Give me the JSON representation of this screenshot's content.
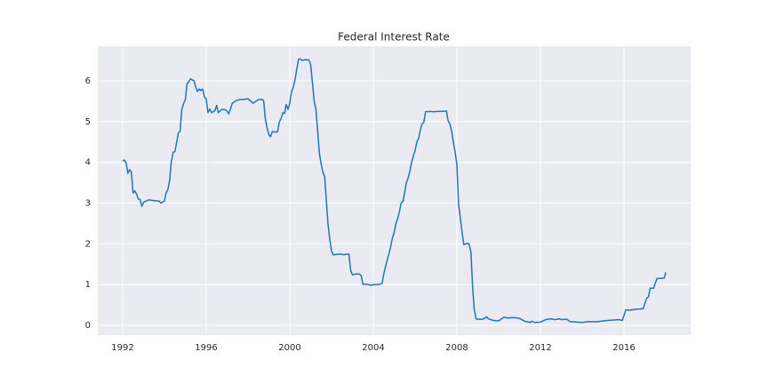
{
  "chart_data": {
    "type": "line",
    "title": "Federal Interest Rate",
    "color": "#1f77b4",
    "grid": true,
    "x": [
      1992.0,
      1992.08,
      1992.17,
      1992.25,
      1992.33,
      1992.42,
      1992.5,
      1992.58,
      1992.67,
      1992.75,
      1992.83,
      1992.92,
      1993.0,
      1993.25,
      1993.5,
      1993.75,
      1993.83,
      1994.0,
      1994.08,
      1994.17,
      1994.25,
      1994.33,
      1994.42,
      1994.5,
      1994.58,
      1994.67,
      1994.75,
      1994.83,
      1994.92,
      1995.0,
      1995.08,
      1995.17,
      1995.25,
      1995.42,
      1995.5,
      1995.58,
      1995.67,
      1995.75,
      1995.83,
      1995.92,
      1996.0,
      1996.08,
      1996.17,
      1996.25,
      1996.42,
      1996.5,
      1996.58,
      1996.75,
      1996.92,
      1997.0,
      1997.08,
      1997.25,
      1997.42,
      1997.58,
      1997.75,
      1998.0,
      1998.25,
      1998.5,
      1998.67,
      1998.75,
      1998.83,
      1998.92,
      1999.0,
      1999.08,
      1999.17,
      1999.33,
      1999.42,
      1999.5,
      1999.58,
      1999.67,
      1999.75,
      1999.83,
      1999.92,
      2000.0,
      2000.08,
      2000.17,
      2000.25,
      2000.33,
      2000.42,
      2000.5,
      2000.58,
      2000.75,
      2000.92,
      2001.0,
      2001.08,
      2001.17,
      2001.25,
      2001.33,
      2001.42,
      2001.5,
      2001.58,
      2001.67,
      2001.75,
      2001.83,
      2001.92,
      2002.0,
      2002.08,
      2002.25,
      2002.42,
      2002.58,
      2002.75,
      2002.83,
      2002.92,
      2003.0,
      2003.17,
      2003.33,
      2003.42,
      2003.5,
      2003.67,
      2003.92,
      2004.0,
      2004.25,
      2004.42,
      2004.5,
      2004.58,
      2004.67,
      2004.75,
      2004.83,
      2004.92,
      2005.0,
      2005.08,
      2005.17,
      2005.25,
      2005.33,
      2005.42,
      2005.5,
      2005.58,
      2005.67,
      2005.75,
      2005.83,
      2005.92,
      2006.0,
      2006.08,
      2006.17,
      2006.25,
      2006.33,
      2006.42,
      2006.5,
      2006.67,
      2006.92,
      2007.0,
      2007.25,
      2007.5,
      2007.58,
      2007.67,
      2007.75,
      2007.83,
      2007.92,
      2008.0,
      2008.08,
      2008.17,
      2008.25,
      2008.33,
      2008.42,
      2008.5,
      2008.58,
      2008.67,
      2008.75,
      2008.83,
      2008.92,
      2009.0,
      2009.25,
      2009.42,
      2009.5,
      2009.75,
      2010.0,
      2010.25,
      2010.42,
      2010.75,
      2011.0,
      2011.25,
      2011.5,
      2011.58,
      2011.75,
      2012.0,
      2012.25,
      2012.5,
      2012.67,
      2012.92,
      2013.0,
      2013.25,
      2013.42,
      2013.75,
      2014.0,
      2014.25,
      2014.5,
      2014.75,
      2015.0,
      2015.25,
      2015.5,
      2015.75,
      2015.92,
      2016.0,
      2016.08,
      2016.25,
      2016.5,
      2016.75,
      2016.92,
      2017.0,
      2017.08,
      2017.17,
      2017.25,
      2017.42,
      2017.5,
      2017.58,
      2017.75,
      2017.92,
      2018.0
    ],
    "values": [
      4.03,
      4.06,
      3.98,
      3.73,
      3.82,
      3.76,
      3.25,
      3.3,
      3.22,
      3.1,
      3.09,
      2.92,
      3.02,
      3.08,
      3.06,
      3.05,
      3.0,
      3.05,
      3.25,
      3.34,
      3.56,
      4.01,
      4.25,
      4.26,
      4.47,
      4.73,
      4.76,
      5.29,
      5.45,
      5.53,
      5.92,
      5.98,
      6.05,
      6.0,
      5.85,
      5.74,
      5.8,
      5.76,
      5.8,
      5.6,
      5.56,
      5.22,
      5.31,
      5.22,
      5.27,
      5.4,
      5.22,
      5.3,
      5.29,
      5.25,
      5.19,
      5.45,
      5.51,
      5.54,
      5.54,
      5.56,
      5.45,
      5.54,
      5.55,
      5.51,
      5.07,
      4.83,
      4.68,
      4.63,
      4.76,
      4.74,
      4.76,
      4.99,
      5.07,
      5.22,
      5.2,
      5.42,
      5.3,
      5.45,
      5.73,
      5.85,
      6.02,
      6.27,
      6.53,
      6.54,
      6.5,
      6.52,
      6.51,
      6.4,
      5.98,
      5.49,
      5.31,
      4.8,
      4.21,
      3.97,
      3.77,
      3.65,
      3.07,
      2.49,
      2.09,
      1.82,
      1.73,
      1.74,
      1.75,
      1.73,
      1.75,
      1.75,
      1.34,
      1.24,
      1.26,
      1.26,
      1.22,
      1.01,
      1.01,
      0.98,
      1.0,
      1.0,
      1.03,
      1.26,
      1.43,
      1.61,
      1.76,
      1.93,
      2.16,
      2.28,
      2.5,
      2.63,
      2.79,
      3.0,
      3.04,
      3.26,
      3.5,
      3.62,
      3.78,
      4.0,
      4.16,
      4.29,
      4.49,
      4.59,
      4.79,
      4.94,
      4.99,
      5.24,
      5.25,
      5.24,
      5.25,
      5.25,
      5.26,
      5.02,
      4.94,
      4.76,
      4.49,
      4.24,
      3.94,
      2.98,
      2.61,
      2.28,
      1.98,
      2.0,
      2.01,
      2.0,
      1.81,
      0.97,
      0.39,
      0.16,
      0.15,
      0.15,
      0.21,
      0.16,
      0.12,
      0.11,
      0.2,
      0.18,
      0.19,
      0.17,
      0.1,
      0.07,
      0.1,
      0.07,
      0.08,
      0.14,
      0.16,
      0.14,
      0.16,
      0.14,
      0.15,
      0.09,
      0.08,
      0.07,
      0.09,
      0.09,
      0.09,
      0.11,
      0.12,
      0.13,
      0.14,
      0.12,
      0.24,
      0.38,
      0.37,
      0.39,
      0.4,
      0.41,
      0.54,
      0.66,
      0.7,
      0.91,
      0.91,
      1.04,
      1.15,
      1.15,
      1.16,
      1.3
    ],
    "xlim": [
      1990.81,
      2019.19
    ],
    "xticks": [
      1992,
      1996,
      2000,
      2004,
      2008,
      2012,
      2016
    ],
    "ylim": [
      -0.24,
      6.85
    ],
    "yticks": [
      0,
      1,
      2,
      3,
      4,
      5,
      6
    ]
  }
}
